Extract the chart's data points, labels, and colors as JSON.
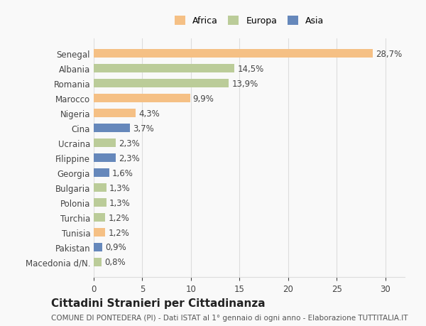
{
  "categories": [
    "Senegal",
    "Albania",
    "Romania",
    "Marocco",
    "Nigeria",
    "Cina",
    "Ucraina",
    "Filippine",
    "Georgia",
    "Bulgaria",
    "Polonia",
    "Turchia",
    "Tunisia",
    "Pakistan",
    "Macedonia d/N."
  ],
  "values": [
    28.7,
    14.5,
    13.9,
    9.9,
    4.3,
    3.7,
    2.3,
    2.3,
    1.6,
    1.3,
    1.3,
    1.2,
    1.2,
    0.9,
    0.8
  ],
  "labels": [
    "28,7%",
    "14,5%",
    "13,9%",
    "9,9%",
    "4,3%",
    "3,7%",
    "2,3%",
    "2,3%",
    "1,6%",
    "1,3%",
    "1,3%",
    "1,2%",
    "1,2%",
    "0,9%",
    "0,8%"
  ],
  "continents": [
    "Africa",
    "Europa",
    "Europa",
    "Africa",
    "Africa",
    "Asia",
    "Europa",
    "Asia",
    "Asia",
    "Europa",
    "Europa",
    "Europa",
    "Africa",
    "Asia",
    "Europa"
  ],
  "colors": {
    "Africa": "#F5C085",
    "Europa": "#BBCC99",
    "Asia": "#6688BB"
  },
  "legend_order": [
    "Africa",
    "Europa",
    "Asia"
  ],
  "xlim": [
    0,
    32
  ],
  "xticks": [
    0,
    5,
    10,
    15,
    20,
    25,
    30
  ],
  "title": "Cittadini Stranieri per Cittadinanza",
  "subtitle": "COMUNE DI PONTEDERA (PI) - Dati ISTAT al 1° gennaio di ogni anno - Elaborazione TUTTITALIA.IT",
  "background_color": "#f9f9f9",
  "bar_height": 0.55,
  "grid_color": "#dddddd",
  "label_fontsize": 8.5,
  "tick_fontsize": 8.5,
  "title_fontsize": 11,
  "subtitle_fontsize": 7.5
}
